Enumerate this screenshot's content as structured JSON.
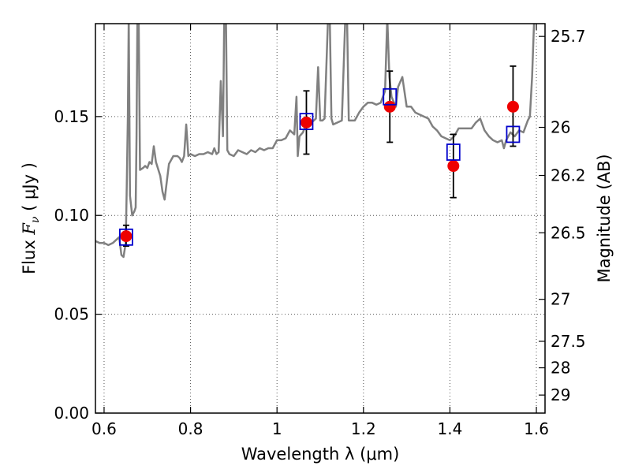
{
  "chart_data": {
    "type": "scatter",
    "xlabel": "Wavelength  λ (μm)",
    "ylabel_prefix": "Flux  ",
    "ylabel_symbol": "F",
    "ylabel_sub": "ν",
    "ylabel_suffix": "  ( μJy )",
    "y2label": "Magnitude (AB)",
    "xlim": [
      0.58,
      1.62
    ],
    "ylim": [
      0.0,
      0.197
    ],
    "grid": true,
    "x_ticks": [
      {
        "value": 0.6,
        "label": "0.6"
      },
      {
        "value": 0.8,
        "label": "0.8"
      },
      {
        "value": 1.0,
        "label": "1"
      },
      {
        "value": 1.2,
        "label": "1.2"
      },
      {
        "value": 1.4,
        "label": "1.4"
      },
      {
        "value": 1.6,
        "label": "1.6"
      }
    ],
    "y_ticks": [
      {
        "value": 0.0,
        "label": "0.00"
      },
      {
        "value": 0.05,
        "label": "0.05"
      },
      {
        "value": 0.1,
        "label": "0.10"
      },
      {
        "value": 0.15,
        "label": "0.15"
      }
    ],
    "y2_ticks": [
      {
        "mag": 25.7,
        "label": "25.7"
      },
      {
        "mag": 26,
        "label": "26"
      },
      {
        "mag": 26.2,
        "label": "26.2"
      },
      {
        "mag": 26.5,
        "label": "26.5"
      },
      {
        "mag": 27,
        "label": "27"
      },
      {
        "mag": 27.5,
        "label": "27.5"
      },
      {
        "mag": 28,
        "label": "28"
      },
      {
        "mag": 29,
        "label": "29"
      }
    ],
    "colors": {
      "spectrum": "#808080",
      "observed": "#ee0000",
      "model_box": "#0000cc",
      "error": "#000000",
      "grid": "#555555"
    },
    "spectrum": [
      [
        0.58,
        0.087
      ],
      [
        0.59,
        0.086
      ],
      [
        0.6,
        0.086
      ],
      [
        0.61,
        0.085
      ],
      [
        0.62,
        0.086
      ],
      [
        0.63,
        0.088
      ],
      [
        0.635,
        0.089
      ],
      [
        0.64,
        0.08
      ],
      [
        0.645,
        0.079
      ],
      [
        0.65,
        0.086
      ],
      [
        0.652,
        0.11
      ],
      [
        0.655,
        0.15
      ],
      [
        0.657,
        0.2
      ],
      [
        0.66,
        0.11
      ],
      [
        0.665,
        0.1
      ],
      [
        0.67,
        0.102
      ],
      [
        0.673,
        0.104
      ],
      [
        0.675,
        0.14
      ],
      [
        0.677,
        0.2
      ],
      [
        0.68,
        0.2
      ],
      [
        0.683,
        0.123
      ],
      [
        0.69,
        0.124
      ],
      [
        0.695,
        0.125
      ],
      [
        0.7,
        0.124
      ],
      [
        0.705,
        0.127
      ],
      [
        0.71,
        0.126
      ],
      [
        0.715,
        0.135
      ],
      [
        0.72,
        0.127
      ],
      [
        0.73,
        0.12
      ],
      [
        0.735,
        0.112
      ],
      [
        0.74,
        0.108
      ],
      [
        0.75,
        0.126
      ],
      [
        0.76,
        0.13
      ],
      [
        0.77,
        0.13
      ],
      [
        0.775,
        0.129
      ],
      [
        0.78,
        0.127
      ],
      [
        0.785,
        0.13
      ],
      [
        0.79,
        0.146
      ],
      [
        0.795,
        0.13
      ],
      [
        0.8,
        0.131
      ],
      [
        0.81,
        0.13
      ],
      [
        0.82,
        0.131
      ],
      [
        0.83,
        0.131
      ],
      [
        0.84,
        0.132
      ],
      [
        0.85,
        0.131
      ],
      [
        0.855,
        0.134
      ],
      [
        0.86,
        0.131
      ],
      [
        0.865,
        0.132
      ],
      [
        0.87,
        0.168
      ],
      [
        0.875,
        0.14
      ],
      [
        0.878,
        0.2
      ],
      [
        0.882,
        0.2
      ],
      [
        0.885,
        0.133
      ],
      [
        0.89,
        0.131
      ],
      [
        0.9,
        0.13
      ],
      [
        0.91,
        0.133
      ],
      [
        0.92,
        0.132
      ],
      [
        0.93,
        0.131
      ],
      [
        0.94,
        0.133
      ],
      [
        0.95,
        0.132
      ],
      [
        0.96,
        0.134
      ],
      [
        0.97,
        0.133
      ],
      [
        0.98,
        0.134
      ],
      [
        0.99,
        0.134
      ],
      [
        1.0,
        0.138
      ],
      [
        1.01,
        0.138
      ],
      [
        1.02,
        0.139
      ],
      [
        1.03,
        0.143
      ],
      [
        1.04,
        0.141
      ],
      [
        1.045,
        0.16
      ],
      [
        1.048,
        0.13
      ],
      [
        1.052,
        0.14
      ],
      [
        1.06,
        0.142
      ],
      [
        1.07,
        0.148
      ],
      [
        1.08,
        0.147
      ],
      [
        1.09,
        0.149
      ],
      [
        1.095,
        0.175
      ],
      [
        1.1,
        0.148
      ],
      [
        1.105,
        0.148
      ],
      [
        1.11,
        0.149
      ],
      [
        1.118,
        0.2
      ],
      [
        1.122,
        0.2
      ],
      [
        1.126,
        0.149
      ],
      [
        1.13,
        0.146
      ],
      [
        1.14,
        0.147
      ],
      [
        1.15,
        0.148
      ],
      [
        1.158,
        0.2
      ],
      [
        1.162,
        0.2
      ],
      [
        1.166,
        0.148
      ],
      [
        1.175,
        0.148
      ],
      [
        1.18,
        0.148
      ],
      [
        1.19,
        0.152
      ],
      [
        1.2,
        0.155
      ],
      [
        1.21,
        0.157
      ],
      [
        1.22,
        0.157
      ],
      [
        1.23,
        0.156
      ],
      [
        1.24,
        0.157
      ],
      [
        1.25,
        0.163
      ],
      [
        1.255,
        0.2
      ],
      [
        1.26,
        0.17
      ],
      [
        1.265,
        0.16
      ],
      [
        1.275,
        0.155
      ],
      [
        1.28,
        0.165
      ],
      [
        1.29,
        0.17
      ],
      [
        1.3,
        0.155
      ],
      [
        1.31,
        0.155
      ],
      [
        1.32,
        0.152
      ],
      [
        1.33,
        0.151
      ],
      [
        1.34,
        0.15
      ],
      [
        1.35,
        0.149
      ],
      [
        1.36,
        0.145
      ],
      [
        1.37,
        0.143
      ],
      [
        1.38,
        0.14
      ],
      [
        1.39,
        0.139
      ],
      [
        1.4,
        0.138
      ],
      [
        1.41,
        0.14
      ],
      [
        1.42,
        0.144
      ],
      [
        1.43,
        0.144
      ],
      [
        1.44,
        0.144
      ],
      [
        1.45,
        0.144
      ],
      [
        1.46,
        0.147
      ],
      [
        1.47,
        0.149
      ],
      [
        1.48,
        0.143
      ],
      [
        1.49,
        0.14
      ],
      [
        1.5,
        0.138
      ],
      [
        1.51,
        0.137
      ],
      [
        1.52,
        0.138
      ],
      [
        1.525,
        0.134
      ],
      [
        1.53,
        0.138
      ],
      [
        1.54,
        0.142
      ],
      [
        1.55,
        0.14
      ],
      [
        1.56,
        0.143
      ],
      [
        1.57,
        0.142
      ],
      [
        1.58,
        0.148
      ],
      [
        1.585,
        0.15
      ],
      [
        1.59,
        0.17
      ],
      [
        1.595,
        0.2
      ],
      [
        1.6,
        0.2
      ],
      [
        1.605,
        0.2
      ],
      [
        1.61,
        0.2
      ],
      [
        1.62,
        0.2
      ]
    ],
    "observed": [
      {
        "x": 0.651,
        "y": 0.0895,
        "err_lo": 0.0845,
        "err_hi": 0.095
      },
      {
        "x": 1.068,
        "y": 0.147,
        "err_lo": 0.131,
        "err_hi": 0.163
      },
      {
        "x": 1.261,
        "y": 0.155,
        "err_lo": 0.137,
        "err_hi": 0.173
      },
      {
        "x": 1.408,
        "y": 0.125,
        "err_lo": 0.109,
        "err_hi": 0.141
      },
      {
        "x": 1.546,
        "y": 0.155,
        "err_lo": 0.135,
        "err_hi": 0.1755
      }
    ],
    "model": [
      {
        "x": 0.651,
        "y": 0.089
      },
      {
        "x": 1.068,
        "y": 0.1475
      },
      {
        "x": 1.261,
        "y": 0.16
      },
      {
        "x": 1.408,
        "y": 0.132
      },
      {
        "x": 1.546,
        "y": 0.141
      }
    ]
  }
}
